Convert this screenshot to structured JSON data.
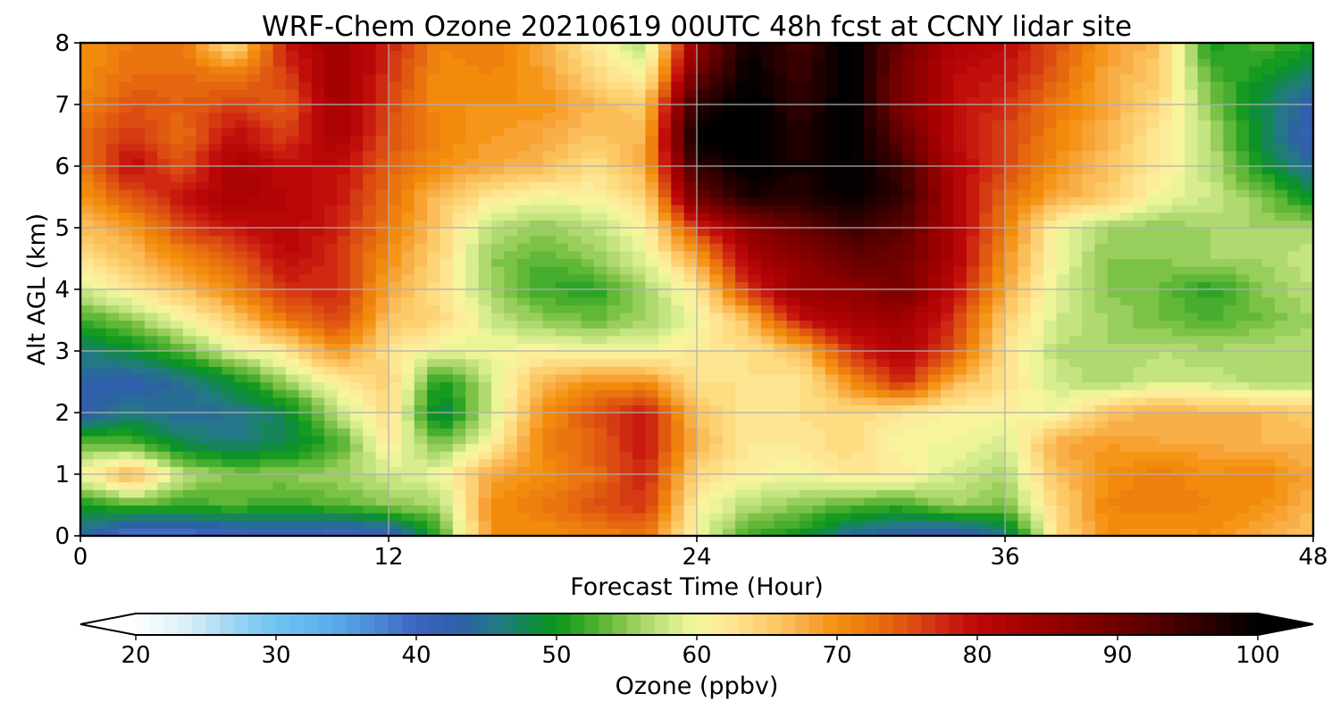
{
  "chart_data": {
    "type": "heatmap",
    "title": "WRF-Chem Ozone  20210619 00UTC 48h fcst at CCNY lidar site",
    "xlabel": "Forecast Time (Hour)",
    "ylabel": "Alt AGL (km)",
    "xlim": [
      0,
      48
    ],
    "ylim": [
      0,
      8
    ],
    "xticks": [
      "0",
      "12",
      "24",
      "36",
      "48"
    ],
    "yticks": [
      "0",
      "1",
      "2",
      "3",
      "4",
      "5",
      "6",
      "7",
      "8"
    ],
    "grid": true,
    "x": [
      0,
      2,
      4,
      6,
      8,
      10,
      12,
      14,
      16,
      18,
      20,
      22,
      24,
      26,
      28,
      30,
      32,
      34,
      36,
      38,
      40,
      42,
      44,
      46,
      48
    ],
    "y": [
      0,
      0.5,
      1,
      1.5,
      2,
      2.5,
      3,
      3.5,
      4,
      4.5,
      5,
      5.5,
      6,
      6.5,
      7,
      7.5,
      8
    ],
    "z": [
      [
        44,
        37,
        38,
        39,
        40,
        39,
        40,
        52,
        70,
        70,
        71,
        72,
        60,
        52,
        50,
        44,
        42,
        40,
        45,
        63,
        70,
        69,
        70,
        68,
        66
      ],
      [
        50,
        53,
        52,
        53,
        52,
        53,
        55,
        56,
        70,
        72,
        75,
        77,
        61,
        57,
        55,
        53,
        52,
        56,
        54,
        64,
        71,
        72,
        71,
        70,
        67
      ],
      [
        60,
        68,
        57,
        55,
        55,
        56,
        58,
        60,
        68,
        70,
        73,
        78,
        64,
        61,
        60,
        62,
        62,
        58,
        56,
        66,
        70,
        72,
        70,
        71,
        68
      ],
      [
        54,
        53,
        48,
        46,
        48,
        52,
        62,
        54,
        61,
        71,
        74,
        79,
        67,
        62,
        62,
        64,
        60,
        60,
        58,
        68,
        69,
        68,
        68,
        67,
        67
      ],
      [
        42,
        46,
        44,
        45,
        48,
        57,
        64,
        47,
        58,
        70,
        75,
        79,
        66,
        62,
        63,
        64,
        62,
        61,
        61,
        60,
        66,
        68,
        67,
        67,
        65
      ],
      [
        43,
        42,
        45,
        49,
        56,
        61,
        65,
        50,
        58,
        67,
        70,
        70,
        63,
        63,
        62,
        70,
        78,
        67,
        63,
        58,
        56,
        58,
        58,
        56,
        57
      ],
      [
        46,
        49,
        53,
        59,
        62,
        70,
        63,
        59,
        60,
        61,
        60,
        60,
        62,
        63,
        66,
        77,
        82,
        75,
        63,
        57,
        56,
        57,
        56,
        57,
        57
      ],
      [
        52,
        55,
        60,
        65,
        72,
        76,
        66,
        64,
        58,
        55,
        54,
        56,
        60,
        66,
        79,
        83,
        84,
        77,
        65,
        58,
        56,
        54,
        53,
        54,
        56
      ],
      [
        58,
        62,
        66,
        71,
        77,
        78,
        68,
        63,
        56,
        52,
        51,
        56,
        62,
        77,
        85,
        86,
        89,
        80,
        68,
        59,
        55,
        54,
        51,
        55,
        57
      ],
      [
        63,
        66,
        70,
        74,
        80,
        77,
        70,
        64,
        55,
        53,
        55,
        59,
        68,
        82,
        86,
        91,
        90,
        82,
        70,
        60,
        55,
        55,
        56,
        56,
        58
      ],
      [
        66,
        69,
        76,
        79,
        81,
        78,
        72,
        65,
        57,
        55,
        57,
        61,
        77,
        86,
        91,
        95,
        92,
        82,
        72,
        60,
        56,
        55,
        56,
        56,
        56
      ],
      [
        69,
        75,
        79,
        83,
        81,
        79,
        73,
        66,
        62,
        60,
        61,
        64,
        90,
        98,
        97,
        100,
        96,
        82,
        73,
        68,
        65,
        60,
        58,
        55,
        49
      ],
      [
        72,
        80,
        75,
        83,
        80,
        80,
        74,
        70,
        68,
        67,
        63,
        68,
        96,
        100,
        98,
        100,
        95,
        81,
        76,
        70,
        66,
        62,
        57,
        50,
        44
      ],
      [
        73,
        77,
        73,
        80,
        76,
        83,
        75,
        71,
        69,
        68,
        66,
        67,
        101,
        101,
        97,
        101,
        91,
        80,
        76,
        71,
        67,
        62,
        57,
        48,
        41
      ],
      [
        71,
        75,
        74,
        76,
        74,
        84,
        76,
        70,
        70,
        70,
        67,
        65,
        97,
        101,
        96,
        101,
        88,
        80,
        77,
        72,
        68,
        64,
        55,
        48,
        42
      ],
      [
        70,
        73,
        73,
        72,
        76,
        85,
        77,
        70,
        71,
        69,
        64,
        60,
        90,
        100,
        95,
        101,
        88,
        80,
        79,
        74,
        68,
        65,
        53,
        50,
        47
      ],
      [
        70,
        72,
        72,
        62,
        79,
        84,
        78,
        71,
        72,
        68,
        62,
        56,
        86,
        99,
        94,
        101,
        90,
        82,
        80,
        75,
        69,
        66,
        50,
        53,
        51
      ]
    ]
  },
  "colorbar": {
    "label": "Ozone  (ppbv)",
    "ticks": [
      "20",
      "30",
      "40",
      "50",
      "60",
      "70",
      "80",
      "90",
      "100"
    ],
    "min": 20,
    "max": 100,
    "extend": "both",
    "colormap": [
      [
        20,
        "#ffffff"
      ],
      [
        24,
        "#d6ecf8"
      ],
      [
        27,
        "#9cd3f2"
      ],
      [
        30,
        "#6ec4f0"
      ],
      [
        34,
        "#5aacec"
      ],
      [
        37,
        "#4c8ad4"
      ],
      [
        40,
        "#3d64c0"
      ],
      [
        43,
        "#2e5fa8"
      ],
      [
        46,
        "#227a82"
      ],
      [
        48,
        "#12884a"
      ],
      [
        50,
        "#0a961c"
      ],
      [
        52,
        "#3aa82a"
      ],
      [
        54,
        "#6cbc3c"
      ],
      [
        56,
        "#a6d466"
      ],
      [
        58,
        "#cce98a"
      ],
      [
        60,
        "#f6f79c"
      ],
      [
        62,
        "#fde99a"
      ],
      [
        64,
        "#fdd77a"
      ],
      [
        66,
        "#fcc460"
      ],
      [
        68,
        "#f8a840"
      ],
      [
        70,
        "#f4900a"
      ],
      [
        72,
        "#ec7a10"
      ],
      [
        74,
        "#e26010"
      ],
      [
        76,
        "#d84412"
      ],
      [
        78,
        "#cc2010"
      ],
      [
        80,
        "#bc0808"
      ],
      [
        84,
        "#a00000"
      ],
      [
        88,
        "#800000"
      ],
      [
        92,
        "#5c0000"
      ],
      [
        96,
        "#300000"
      ],
      [
        100,
        "#000000"
      ]
    ]
  }
}
